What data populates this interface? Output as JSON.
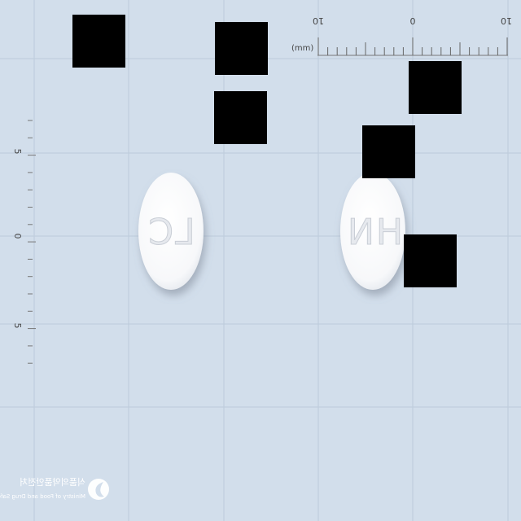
{
  "pills": [
    {
      "imprint": "LC"
    },
    {
      "imprint": "HN"
    }
  ],
  "ruler": {
    "unit_label": "(mm)",
    "horizontal_numbers": [
      "10",
      "0",
      "10"
    ],
    "vertical_numbers": [
      "5",
      "0",
      "5"
    ]
  },
  "watermark": {
    "korean": "식품의약품안전처",
    "english": "Ministry of Food and Drug Safety"
  },
  "colors": {
    "background": "#d2deeb",
    "grid": "#bccbdb",
    "pill": "#ffffff"
  }
}
